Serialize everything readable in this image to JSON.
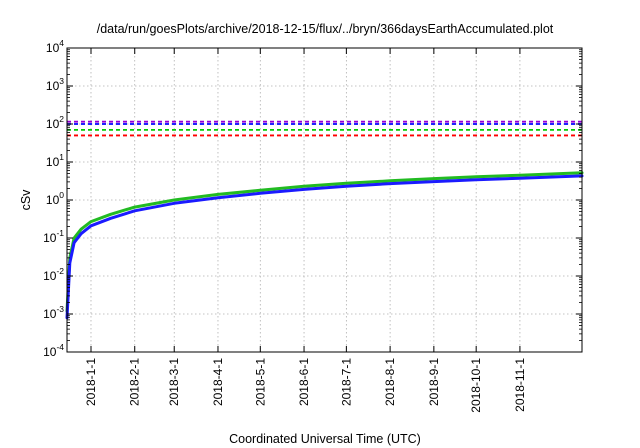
{
  "chart_data": {
    "type": "line",
    "title": "/data/run/goesPlots/archive/2018-12-15/flux/../bryn/366daysEarthAccumulated.plot",
    "xlabel": "Coordinated Universal Time (UTC)",
    "ylabel": "cSv",
    "yscale": "log",
    "ylim": [
      0.0001,
      10000
    ],
    "xlim": [
      "2017-12-15",
      "2018-12-15"
    ],
    "x_ticks": [
      "2018-1-1",
      "2018-2-1",
      "2018-3-1",
      "2018-4-1",
      "2018-5-1",
      "2018-6-1",
      "2018-7-1",
      "2018-8-1",
      "2018-9-1",
      "2018-10-1",
      "2018-11-1"
    ],
    "y_ticks": [
      {
        "base": "10",
        "exp": "-4",
        "value": 0.0001
      },
      {
        "base": "10",
        "exp": "-3",
        "value": 0.001
      },
      {
        "base": "10",
        "exp": "-2",
        "value": 0.01
      },
      {
        "base": "10",
        "exp": "-1",
        "value": 0.1
      },
      {
        "base": "10",
        "exp": "0",
        "value": 1
      },
      {
        "base": "10",
        "exp": "1",
        "value": 10
      },
      {
        "base": "10",
        "exp": "2",
        "value": 100
      },
      {
        "base": "10",
        "exp": "3",
        "value": 1000
      },
      {
        "base": "10",
        "exp": "4",
        "value": 10000
      }
    ],
    "grid": true,
    "series": [
      {
        "color": "#22bb22",
        "style": "solid",
        "x": [
          "2017-12-15",
          "2017-12-17",
          "2017-12-20",
          "2017-12-25",
          "2018-1-1",
          "2018-1-15",
          "2018-2-1",
          "2018-3-1",
          "2018-4-1",
          "2018-5-1",
          "2018-6-1",
          "2018-7-1",
          "2018-8-1",
          "2018-9-1",
          "2018-10-1",
          "2018-11-1",
          "2018-12-15"
        ],
        "y": [
          0.0012,
          0.03,
          0.1,
          0.17,
          0.27,
          0.42,
          0.65,
          1.0,
          1.4,
          1.8,
          2.3,
          2.75,
          3.2,
          3.65,
          4.1,
          4.5,
          5.2
        ]
      },
      {
        "color": "#1b1bff",
        "style": "solid",
        "x": [
          "2017-12-15",
          "2017-12-17",
          "2017-12-20",
          "2017-12-25",
          "2018-1-1",
          "2018-1-15",
          "2018-2-1",
          "2018-3-1",
          "2018-4-1",
          "2018-5-1",
          "2018-6-1",
          "2018-7-1",
          "2018-8-1",
          "2018-9-1",
          "2018-10-1",
          "2018-11-1",
          "2018-12-15"
        ],
        "y": [
          0.0008,
          0.022,
          0.075,
          0.13,
          0.21,
          0.33,
          0.52,
          0.82,
          1.15,
          1.5,
          1.9,
          2.3,
          2.7,
          3.05,
          3.4,
          3.75,
          4.3
        ]
      },
      {
        "color": "#ff0000",
        "style": "dashed",
        "y_const": 50
      },
      {
        "color": "#00cc00",
        "style": "dashed",
        "y_const": 70
      },
      {
        "color": "#0000ff",
        "style": "dashed",
        "y_const": 100
      },
      {
        "color": "#9400d3",
        "style": "dashed",
        "y_const": 115
      }
    ]
  }
}
